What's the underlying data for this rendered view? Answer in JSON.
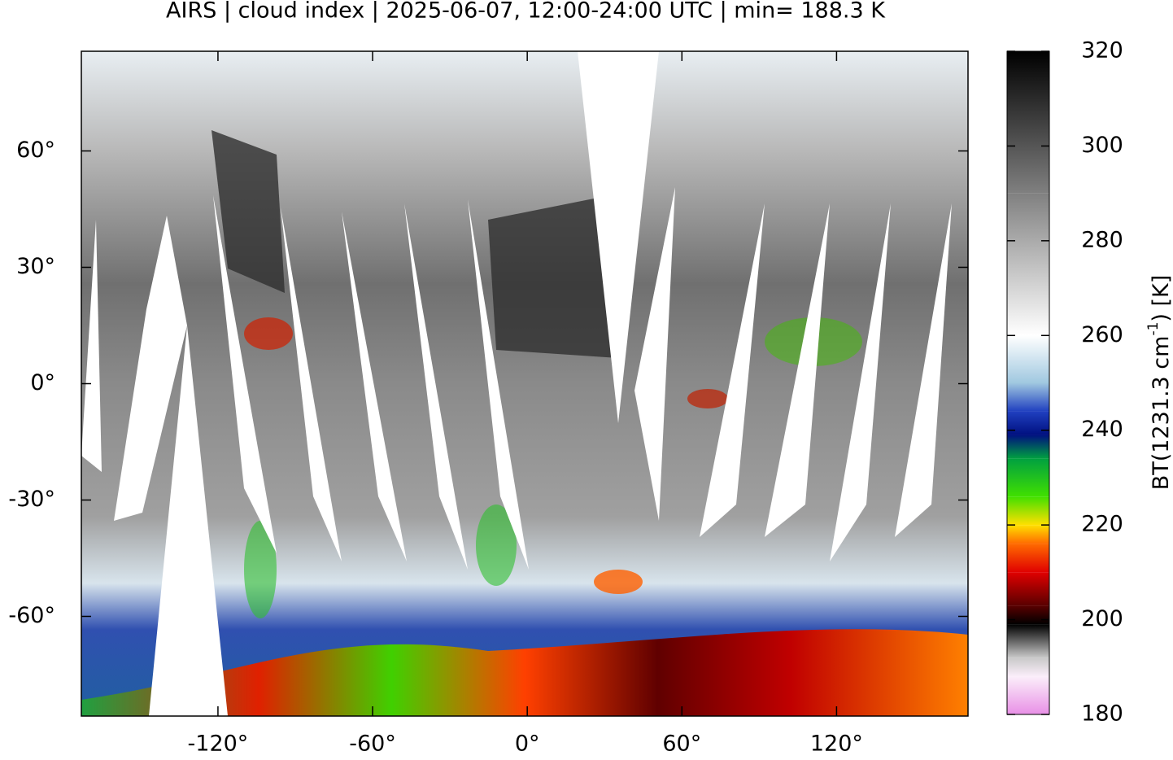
{
  "chart_data": {
    "type": "map",
    "title": "AIRS | cloud index | 2025-06-07, 12:00-24:00 UTC | min= 188.3 K",
    "xlim": [
      -173,
      171
    ],
    "ylim": [
      -85.7,
      85.7
    ],
    "xticks": [
      {
        "value": -120,
        "label": "-120°"
      },
      {
        "value": -60,
        "label": "-60°"
      },
      {
        "value": 0,
        "label": "0°"
      },
      {
        "value": 60,
        "label": "60°"
      },
      {
        "value": 120,
        "label": "120°"
      }
    ],
    "yticks": [
      {
        "value": 60,
        "label": "60°"
      },
      {
        "value": 30,
        "label": "30°"
      },
      {
        "value": 0,
        "label": "0°"
      },
      {
        "value": -30,
        "label": "-30°"
      },
      {
        "value": -60,
        "label": "-60°"
      }
    ],
    "colorbar": {
      "label": [
        "BT(1231.3 cm",
        "-1",
        ") [K]"
      ],
      "lim": [
        180,
        320
      ],
      "ticks": [
        180,
        200,
        220,
        240,
        260,
        280,
        300,
        320
      ],
      "stops": [
        {
          "value": 180,
          "color": "#e890e6"
        },
        {
          "value": 188,
          "color": "#fbeefa"
        },
        {
          "value": 192,
          "color": "#c8c8c8"
        },
        {
          "value": 199,
          "color": "#000000"
        },
        {
          "value": 203,
          "color": "#5a0000"
        },
        {
          "value": 210,
          "color": "#e00000"
        },
        {
          "value": 216,
          "color": "#ff6a00"
        },
        {
          "value": 220,
          "color": "#ffe000"
        },
        {
          "value": 226,
          "color": "#40e000"
        },
        {
          "value": 234,
          "color": "#00a040"
        },
        {
          "value": 239,
          "color": "#001080"
        },
        {
          "value": 244,
          "color": "#2040c0"
        },
        {
          "value": 250,
          "color": "#a0c8e0"
        },
        {
          "value": 260,
          "color": "#ffffff"
        },
        {
          "value": 290,
          "color": "#808080"
        },
        {
          "value": 320,
          "color": "#000000"
        }
      ]
    }
  }
}
